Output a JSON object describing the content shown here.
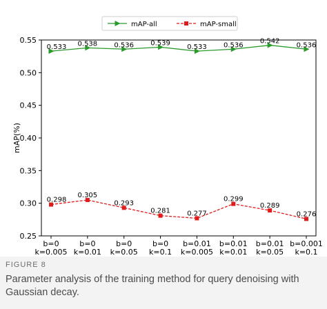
{
  "chart_data": {
    "type": "line",
    "categories": [
      [
        "b=0",
        "k=0.005"
      ],
      [
        "b=0",
        "k=0.01"
      ],
      [
        "b=0",
        "k=0.05"
      ],
      [
        "b=0",
        "k=0.1"
      ],
      [
        "b=0.01",
        "k=0.005"
      ],
      [
        "b=0.01",
        "k=0.01"
      ],
      [
        "b=0.01",
        "k=0.05"
      ],
      [
        "b=0.001",
        "k=0.1"
      ]
    ],
    "series": [
      {
        "name": "mAP-all",
        "values": [
          0.533,
          0.538,
          0.536,
          0.539,
          0.533,
          0.536,
          0.542,
          0.536
        ],
        "labels": [
          "0.533",
          "0.538",
          "0.536",
          "0.539",
          "0.533",
          "0.536",
          "0.542",
          "0.536"
        ],
        "color": "#2a9a2a",
        "marker": "triangle-right",
        "line_style": "solid"
      },
      {
        "name": "mAP-small",
        "values": [
          0.298,
          0.305,
          0.293,
          0.281,
          0.277,
          0.299,
          0.289,
          0.276
        ],
        "labels": [
          "0.298",
          "0.305",
          "0.293",
          "0.281",
          "0.277",
          "0.299",
          "0.289",
          "0.276"
        ],
        "color": "#e01b1b",
        "marker": "square",
        "line_style": "dashed"
      }
    ],
    "xlabel": "",
    "ylabel": "mAP(%)",
    "ylim": [
      0.25,
      0.55
    ],
    "yticks": [
      0.25,
      0.3,
      0.35,
      0.4,
      0.45,
      0.5,
      0.55
    ],
    "ytick_labels": [
      "0.25",
      "0.30",
      "0.35",
      "0.40",
      "0.45",
      "0.50",
      "0.55"
    ],
    "grid": false,
    "legend_position": "top-center"
  },
  "caption": {
    "label": "FIGURE 8",
    "text": "Parameter analysis of the training method for query denoising with Gaussian decay."
  }
}
